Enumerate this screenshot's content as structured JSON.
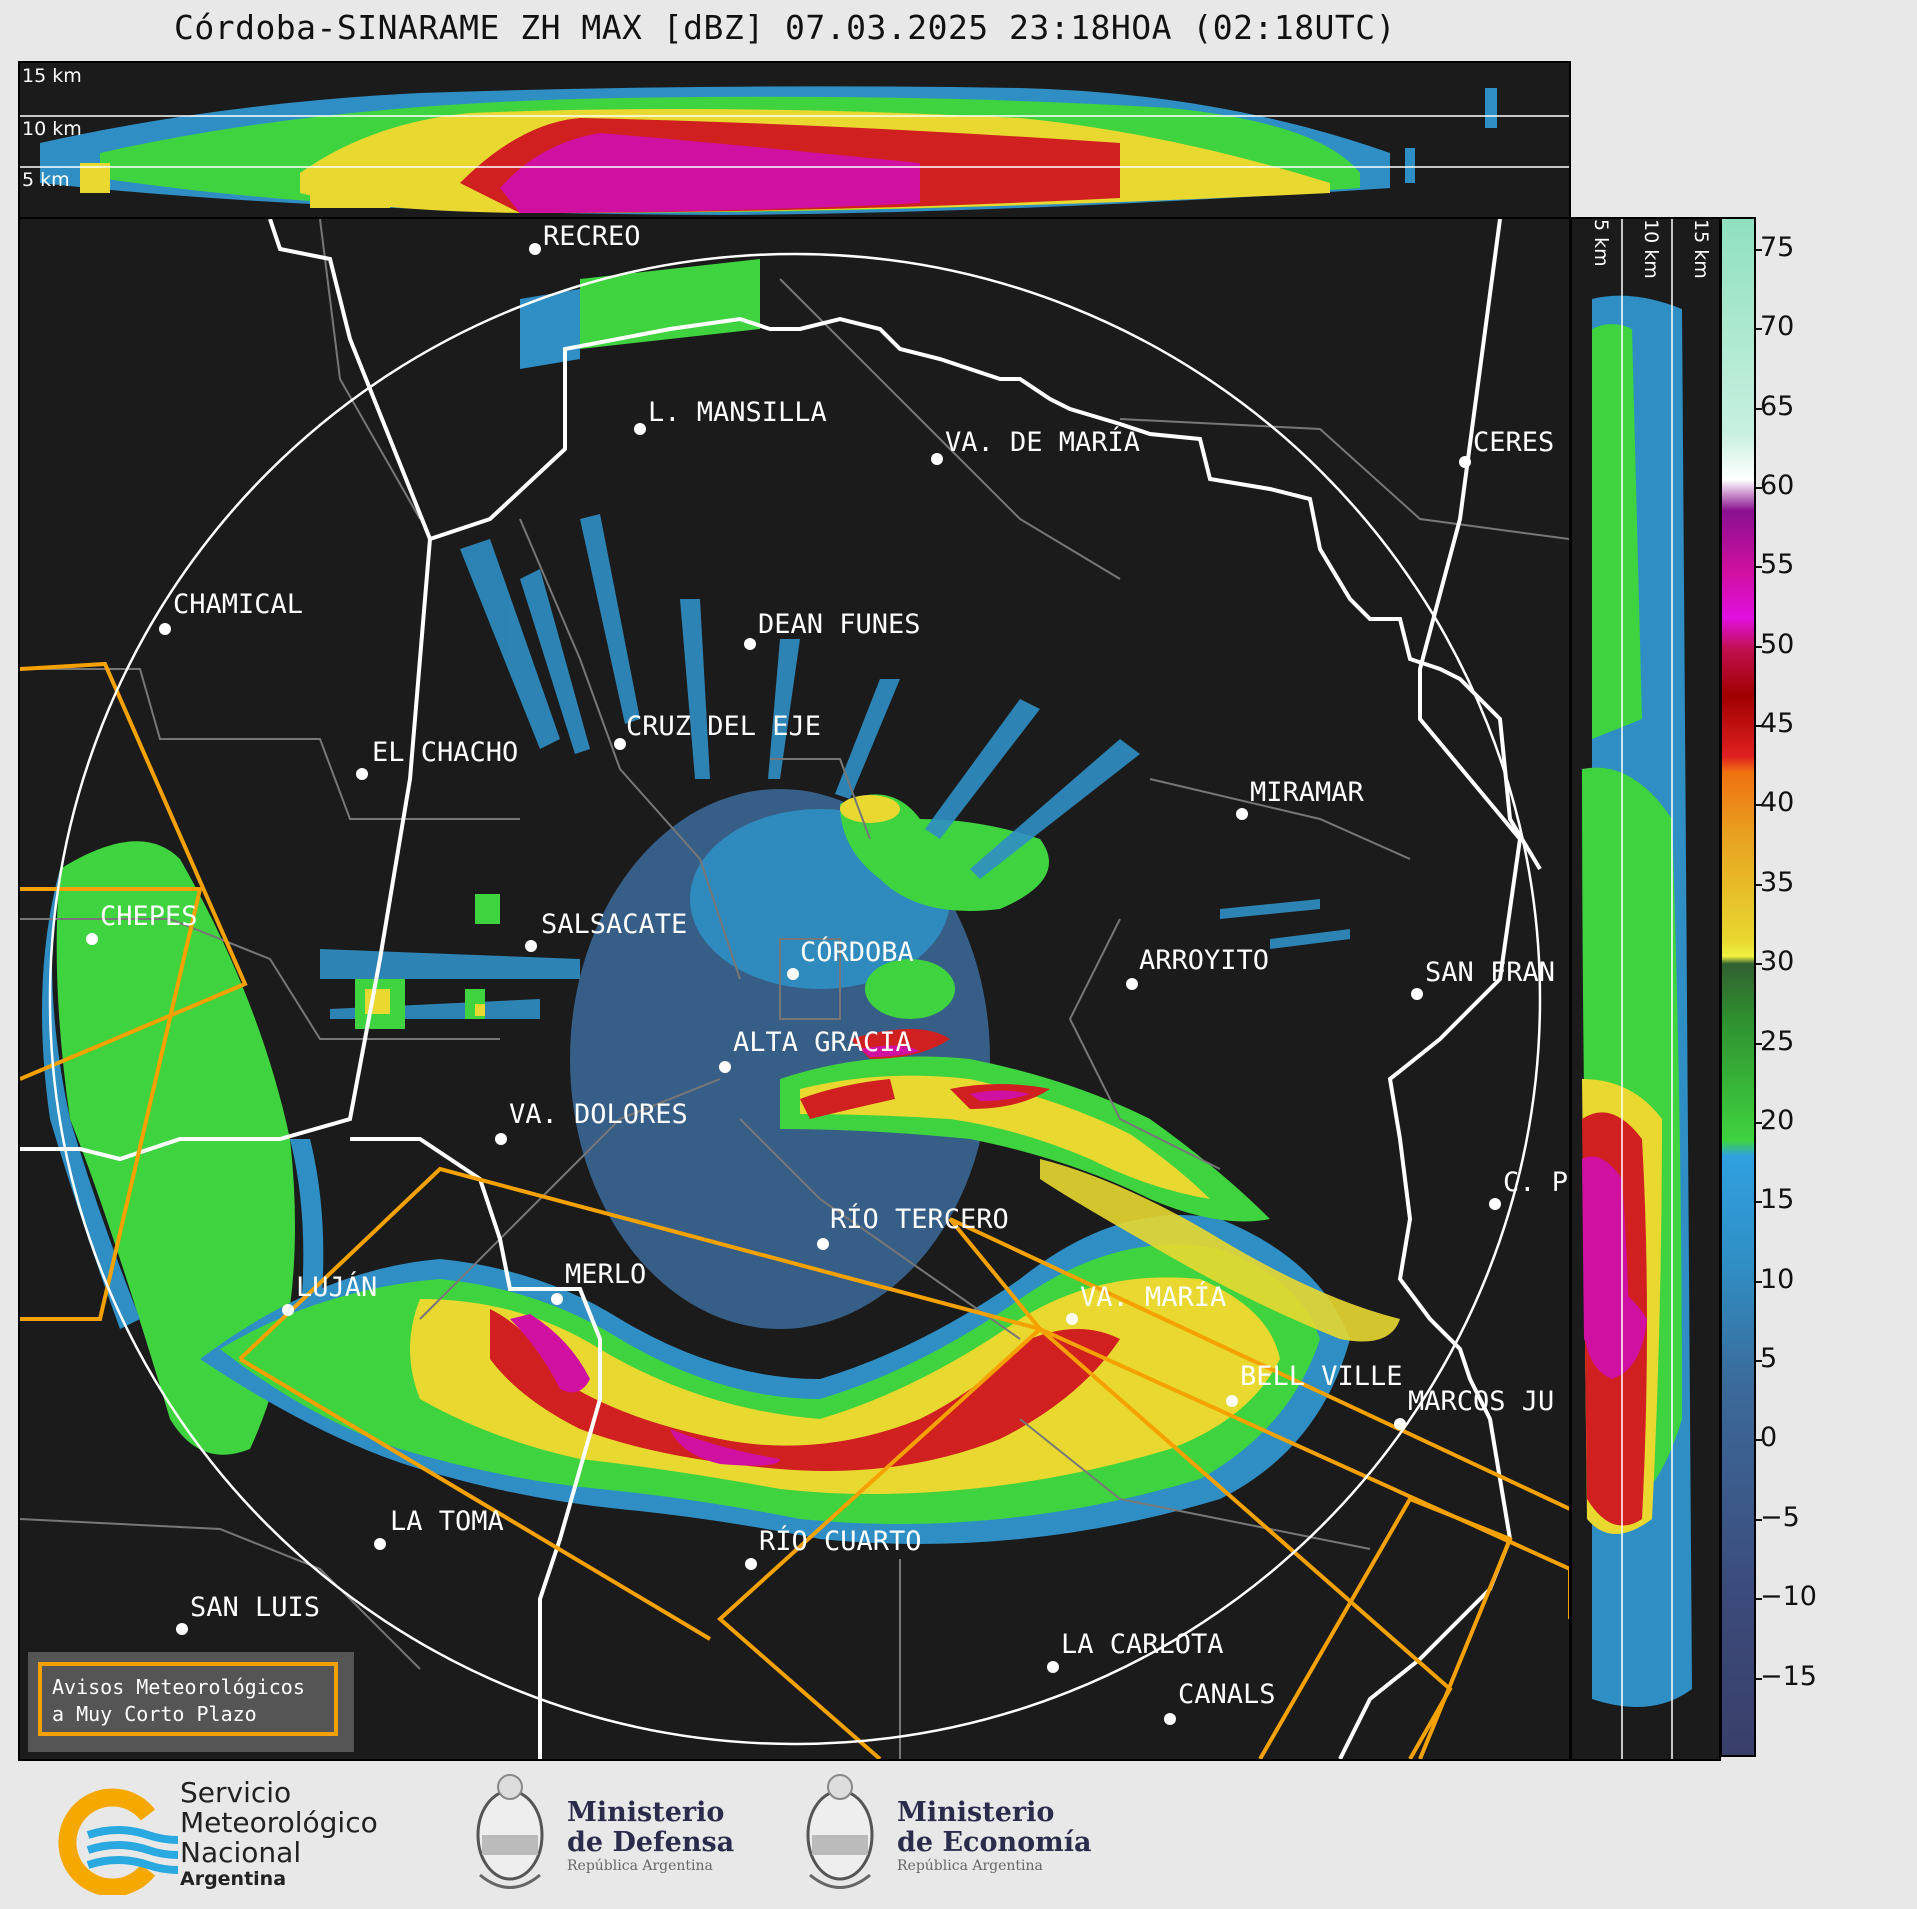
{
  "title": "Córdoba-SINARAME ZH MAX [dBZ] 07.03.2025 23:18HOA (02:18UTC)",
  "top_panel": {
    "altitude_labels": [
      "15 km",
      "10 km",
      "5 km"
    ]
  },
  "side_panel": {
    "altitude_labels": [
      "5 km",
      "10 km",
      "15 km"
    ]
  },
  "colorbar": {
    "unit": "dBZ",
    "ticks": [
      "75",
      "70",
      "65",
      "60",
      "55",
      "50",
      "45",
      "40",
      "35",
      "30",
      "25",
      "20",
      "15",
      "10",
      "5",
      "0",
      "−5",
      "−10",
      "−15"
    ],
    "range": [
      -20,
      77
    ],
    "bands": [
      {
        "from": -20,
        "to": 5,
        "color": "#4a5a8a"
      },
      {
        "from": 5,
        "to": 18,
        "color": "#2f8fc4"
      },
      {
        "from": 18,
        "to": 30,
        "color": "#3fd33f"
      },
      {
        "from": 30,
        "to": 42,
        "color": "#e8d830"
      },
      {
        "from": 42,
        "to": 48,
        "color": "#d02020"
      },
      {
        "from": 48,
        "to": 58,
        "color": "#d010a0"
      },
      {
        "from": 58,
        "to": 60,
        "color": "#ffffff"
      },
      {
        "from": 60,
        "to": 77,
        "color": "#8fe0c0"
      }
    ]
  },
  "cities": [
    {
      "name": "RECREO"
    },
    {
      "name": "L. MANSILLA"
    },
    {
      "name": "VA. DE MARÍA"
    },
    {
      "name": "CERES"
    },
    {
      "name": "CHAMICAL"
    },
    {
      "name": "DEAN FUNES"
    },
    {
      "name": "CRUZ DEL EJE"
    },
    {
      "name": "EL CHACHO"
    },
    {
      "name": "MIRAMAR"
    },
    {
      "name": "CHEPES"
    },
    {
      "name": "SALSACATE"
    },
    {
      "name": "CÓRDOBA"
    },
    {
      "name": "ARROYITO"
    },
    {
      "name": "SAN FRAN"
    },
    {
      "name": "ALTA GRACIA"
    },
    {
      "name": "VA. DOLORES"
    },
    {
      "name": "C. P"
    },
    {
      "name": "RÍO TERCERO"
    },
    {
      "name": "MERLO"
    },
    {
      "name": "LUJÁN"
    },
    {
      "name": "VA. MARÍA"
    },
    {
      "name": "BELL VILLE"
    },
    {
      "name": "MARCOS JU"
    },
    {
      "name": "LA TOMA"
    },
    {
      "name": "RÍO CUARTO"
    },
    {
      "name": "SAN LUIS"
    },
    {
      "name": "LA CARLOTA"
    },
    {
      "name": "CANALS"
    }
  ],
  "warning_box": {
    "line1": "Avisos Meteorológicos",
    "line2": "a Muy Corto Plazo"
  },
  "logos": {
    "smn": {
      "line1": "Servicio",
      "line2": "Meteorológico",
      "line3": "Nacional",
      "line4": "Argentina"
    },
    "defensa": {
      "line1": "Ministerio",
      "line2": "de Defensa",
      "line3": "República Argentina"
    },
    "economia": {
      "line1": "Ministerio",
      "line2": "de Economía",
      "line3": "República Argentina"
    }
  },
  "colors": {
    "background": "#1b1b1b",
    "province_border": "#ffffff",
    "department_border": "#777777",
    "warning_polygon": "#f5a100",
    "range_ring": "#ffffff"
  }
}
